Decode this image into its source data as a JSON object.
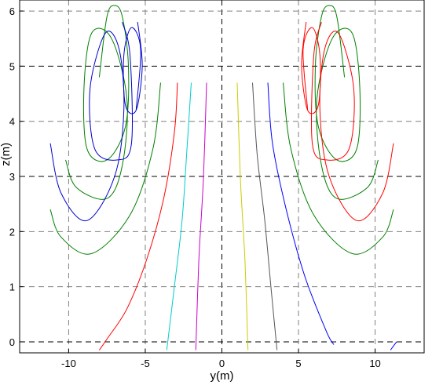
{
  "chart_data": {
    "type": "line",
    "title": "",
    "xlabel": "y(m)",
    "ylabel": "z(m)",
    "xlim": [
      -13.2,
      13.2
    ],
    "ylim": [
      -0.2,
      6.2
    ],
    "xticks": [
      -10,
      -5,
      0,
      5,
      10
    ],
    "yticks": [
      0,
      1,
      2,
      3,
      4,
      5,
      6
    ],
    "xtick_labels": [
      "-10",
      "-5",
      "0",
      "5",
      "10"
    ],
    "ytick_labels": [
      "0",
      "1",
      "2",
      "3",
      "4",
      "5",
      "6"
    ],
    "grid": true,
    "grid_style": "dashed",
    "axes_color": "#000000",
    "grid_color": "#808080",
    "series": [
      {
        "color": "#ff0000",
        "points": [
          [
            -8,
            -0.15
          ],
          [
            -7.5,
            0.05
          ],
          [
            -6.2,
            0.6
          ],
          [
            -4.9,
            1.5
          ],
          [
            -3.8,
            2.6
          ],
          [
            -3.1,
            3.8
          ],
          [
            -2.9,
            4.7
          ]
        ]
      },
      {
        "color": "#00cccc",
        "points": [
          [
            -3.6,
            -0.15
          ],
          [
            -3.1,
            1.0
          ],
          [
            -2.6,
            2.2
          ],
          [
            -2.3,
            3.4
          ],
          [
            -2.0,
            4.7
          ]
        ]
      },
      {
        "color": "#cc00cc",
        "points": [
          [
            -1.7,
            -0.15
          ],
          [
            -1.5,
            1.5
          ],
          [
            -1.2,
            3.0
          ],
          [
            -1.0,
            4.7
          ]
        ]
      },
      {
        "color": "#cccc00",
        "points": [
          [
            1.0,
            4.7
          ],
          [
            1.2,
            3.0
          ],
          [
            1.5,
            1.5
          ],
          [
            1.7,
            -0.15
          ]
        ]
      },
      {
        "color": "#555555",
        "points": [
          [
            2.0,
            4.7
          ],
          [
            2.3,
            3.4
          ],
          [
            2.8,
            2.2
          ],
          [
            3.2,
            1.0
          ],
          [
            3.6,
            -0.15
          ]
        ]
      },
      {
        "color": "#0000ff",
        "points": [
          [
            3.0,
            4.7
          ],
          [
            3.3,
            3.6
          ],
          [
            4.2,
            2.4
          ],
          [
            5.4,
            1.2
          ],
          [
            6.8,
            0.2
          ],
          [
            7.3,
            -0.05
          ]
        ]
      },
      {
        "color": "#0000ff",
        "points": [
          [
            11.0,
            -0.15
          ],
          [
            11.4,
            0.0
          ]
        ]
      },
      {
        "color": "#008000",
        "points": [
          [
            -8.0,
            4.8
          ],
          [
            -7.5,
            5.9
          ],
          [
            -7,
            6.1
          ],
          [
            -6.5,
            5.9
          ],
          [
            -6.1,
            5.0
          ],
          [
            -6.3,
            3.9
          ],
          [
            -7.5,
            3.3
          ],
          [
            -8.8,
            3.5
          ],
          [
            -9.0,
            4.6
          ],
          [
            -8.5,
            5.6
          ],
          [
            -7.2,
            5.5
          ],
          [
            -6.2,
            4.4
          ],
          [
            -6.5,
            3.2
          ],
          [
            -7.5,
            2.6
          ],
          [
            -9.5,
            2.8
          ],
          [
            -10.2,
            3.3
          ]
        ]
      },
      {
        "color": "#008000",
        "points": [
          [
            -4.0,
            4.7
          ],
          [
            -4.5,
            3.5
          ],
          [
            -6.0,
            2.3
          ],
          [
            -8.5,
            1.6
          ],
          [
            -10.5,
            1.9
          ],
          [
            -11.2,
            2.4
          ]
        ]
      },
      {
        "color": "#0000cc",
        "points": [
          [
            -5.5,
            5.8
          ],
          [
            -5.2,
            5.0
          ],
          [
            -5.6,
            4.2
          ],
          [
            -6.3,
            4.3
          ],
          [
            -6.4,
            5.2
          ],
          [
            -5.9,
            5.7
          ],
          [
            -5.3,
            5.3
          ],
          [
            -5.6,
            4.2
          ]
        ]
      },
      {
        "color": "#0000cc",
        "points": [
          [
            -6.5,
            5.8
          ],
          [
            -6.0,
            5.2
          ],
          [
            -5.9,
            3.6
          ],
          [
            -6.8,
            3.3
          ],
          [
            -8.3,
            3.5
          ],
          [
            -8.6,
            4.6
          ],
          [
            -7.6,
            5.6
          ],
          [
            -6.7,
            5.3
          ],
          [
            -6.4,
            4.2
          ],
          [
            -7.0,
            3.0
          ],
          [
            -8.8,
            2.2
          ],
          [
            -10.5,
            2.7
          ],
          [
            -11.2,
            3.6
          ]
        ]
      },
      {
        "color": "#008000",
        "points": [
          [
            8.0,
            4.8
          ],
          [
            7.5,
            5.9
          ],
          [
            7,
            6.1
          ],
          [
            6.5,
            5.9
          ],
          [
            6.1,
            5.0
          ],
          [
            6.3,
            3.9
          ],
          [
            7.5,
            3.3
          ],
          [
            8.8,
            3.5
          ],
          [
            9.0,
            4.6
          ],
          [
            8.5,
            5.6
          ],
          [
            7.2,
            5.5
          ],
          [
            6.2,
            4.4
          ],
          [
            6.5,
            3.2
          ],
          [
            7.5,
            2.6
          ],
          [
            9.5,
            2.8
          ],
          [
            10.2,
            3.3
          ]
        ]
      },
      {
        "color": "#008000",
        "points": [
          [
            4.0,
            4.7
          ],
          [
            4.5,
            3.5
          ],
          [
            6.0,
            2.3
          ],
          [
            8.5,
            1.6
          ],
          [
            10.5,
            1.9
          ],
          [
            11.2,
            2.4
          ]
        ]
      },
      {
        "color": "#ff0000",
        "points": [
          [
            5.5,
            5.8
          ],
          [
            5.2,
            5.0
          ],
          [
            5.6,
            4.2
          ],
          [
            6.3,
            4.3
          ],
          [
            6.4,
            5.2
          ],
          [
            5.9,
            5.7
          ],
          [
            5.3,
            5.3
          ],
          [
            5.6,
            4.2
          ]
        ]
      },
      {
        "color": "#ff0000",
        "points": [
          [
            6.5,
            5.8
          ],
          [
            6.0,
            5.2
          ],
          [
            5.9,
            3.6
          ],
          [
            6.8,
            3.3
          ],
          [
            8.3,
            3.5
          ],
          [
            8.6,
            4.6
          ],
          [
            7.6,
            5.6
          ],
          [
            6.7,
            5.3
          ],
          [
            6.4,
            4.2
          ],
          [
            7.0,
            3.0
          ],
          [
            8.8,
            2.2
          ],
          [
            10.5,
            2.7
          ],
          [
            11.2,
            3.6
          ]
        ]
      }
    ]
  }
}
